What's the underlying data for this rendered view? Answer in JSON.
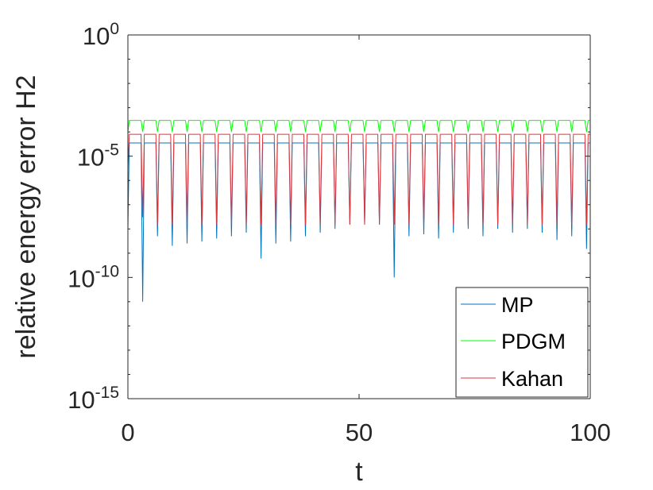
{
  "chart_data": {
    "type": "line",
    "xlabel": "t",
    "ylabel": "relative energy error H2",
    "xlim": [
      0,
      100
    ],
    "ylim": [
      1e-15,
      1
    ],
    "yscale": "log",
    "grid": false,
    "legend_position": "bottom-right",
    "x_ticks": [
      {
        "value": 0,
        "label": "0"
      },
      {
        "value": 50,
        "label": "50"
      },
      {
        "value": 100,
        "label": "100"
      }
    ],
    "y_ticks": [
      {
        "exp": 0,
        "base": "10",
        "sup": "0"
      },
      {
        "exp": -5,
        "base": "10",
        "sup": "-5"
      },
      {
        "exp": -10,
        "base": "10",
        "sup": "-10"
      },
      {
        "exp": -15,
        "base": "10",
        "sup": "-15"
      }
    ],
    "dip_times": [
      3.2,
      6.4,
      9.6,
      12.8,
      16.0,
      19.2,
      22.4,
      25.6,
      28.8,
      32.0,
      35.2,
      38.4,
      41.6,
      44.8,
      48.0,
      51.2,
      54.4,
      57.6,
      60.8,
      64.0,
      67.2,
      70.4,
      73.6,
      76.8,
      80.0,
      83.2,
      86.4,
      89.6,
      92.8,
      96.0,
      99.2
    ],
    "series": [
      {
        "name": "MP",
        "color": "#0072BD",
        "plateau": 3.5e-05,
        "start": 1e-08,
        "dip_values": [
          1e-11,
          5e-09,
          2e-09,
          2.5e-09,
          3e-09,
          4e-09,
          5e-09,
          7e-09,
          6e-10,
          2.5e-09,
          3e-09,
          5e-09,
          7e-09,
          1e-08,
          1.5e-08,
          1.5e-08,
          1.5e-08,
          1e-10,
          5e-09,
          6e-09,
          4e-09,
          7e-09,
          1e-08,
          5e-09,
          1e-08,
          7e-09,
          1e-08,
          7e-09,
          3.5e-09,
          5e-09,
          1.5e-09
        ]
      },
      {
        "name": "PDGM",
        "color": "#00FF00",
        "plateau": 0.0003,
        "start": 0.0001,
        "dip_values": [
          0.0001,
          0.0001,
          0.0001,
          0.0001,
          0.0001,
          0.0001,
          0.0001,
          0.0001,
          0.0001,
          0.0001,
          0.0001,
          0.0001,
          0.0001,
          0.0001,
          0.0001,
          0.0001,
          0.0001,
          0.0001,
          0.0001,
          0.0001,
          0.0001,
          0.0001,
          0.0001,
          0.0001,
          0.0001,
          0.0001,
          0.0001,
          0.0001,
          0.0001,
          0.0001,
          0.0001
        ]
      },
      {
        "name": "Kahan",
        "color": "#E0353B",
        "plateau": 8e-05,
        "start": 3e-06,
        "dip_values": [
          3e-08,
          1.5e-08,
          1.5e-08,
          1.5e-08,
          1.5e-08,
          1.5e-08,
          1.5e-08,
          1.5e-08,
          1.5e-08,
          1.5e-08,
          1.5e-08,
          1.5e-08,
          1.5e-08,
          1.5e-08,
          1.5e-08,
          1.5e-08,
          1.5e-08,
          1.5e-08,
          1.5e-08,
          1.5e-08,
          1.5e-08,
          1.5e-08,
          1.5e-08,
          1.5e-08,
          1.5e-08,
          1.5e-08,
          1.5e-08,
          1.5e-08,
          1.5e-08,
          1.5e-08,
          1.5e-08
        ]
      }
    ]
  }
}
